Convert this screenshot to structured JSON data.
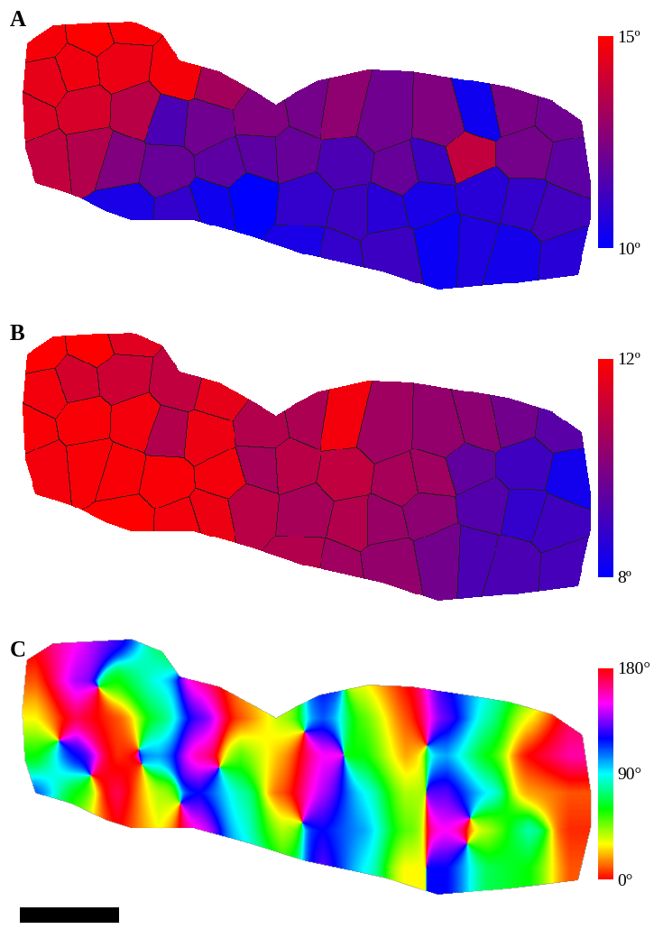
{
  "chart_data": [
    {
      "type": "heatmap",
      "title": "A",
      "tick_labels": false,
      "colors": [
        "#0000ff",
        "#ff0000"
      ],
      "colorbar_range": [
        10,
        15
      ],
      "colorbar_ticks": [
        {
          "value": 15,
          "label": "15º"
        },
        {
          "value": 10,
          "label": "10º"
        }
      ],
      "cells": [
        [
          14.8,
          15.0,
          14.9,
          null,
          null,
          null,
          null,
          null,
          null,
          null,
          null,
          null,
          null
        ],
        [
          14.5,
          14.7,
          14.6,
          14.8,
          13.2,
          null,
          null,
          null,
          null,
          null,
          null,
          null,
          null
        ],
        [
          14.3,
          14.2,
          13.6,
          11.5,
          12.2,
          12.5,
          12.3,
          12.8,
          12.2,
          12.5,
          10.3,
          12.4,
          12.2
        ],
        [
          13.8,
          13.5,
          12.5,
          12.0,
          11.8,
          11.8,
          12.0,
          11.5,
          12.0,
          11.2,
          13.8,
          12.3,
          11.8
        ],
        [
          null,
          null,
          10.5,
          11.0,
          10.3,
          10.0,
          11.0,
          11.2,
          10.8,
          10.5,
          10.8,
          11.0,
          11.3
        ],
        [
          null,
          null,
          null,
          null,
          null,
          null,
          10.5,
          11.0,
          11.2,
          10.2,
          10.6,
          10.4,
          10.8
        ]
      ]
    },
    {
      "type": "heatmap",
      "title": "B",
      "tick_labels": false,
      "colors": [
        "#0000ff",
        "#ff0000"
      ],
      "colorbar_range": [
        8,
        12
      ],
      "colorbar_ticks": [
        {
          "value": 12,
          "label": "12º"
        },
        {
          "value": 8,
          "label": "8º"
        }
      ],
      "cells": [
        [
          12,
          12,
          11.5,
          null,
          null,
          null,
          null,
          null,
          null,
          null,
          null,
          null,
          null
        ],
        [
          11.8,
          11.3,
          11.2,
          11.0,
          11.6,
          null,
          null,
          null,
          null,
          null,
          null,
          null,
          null
        ],
        [
          11.9,
          11.9,
          11.8,
          10.8,
          11.7,
          10.8,
          10.7,
          11.8,
          10.5,
          10.3,
          10.2,
          9.8,
          9.4
        ],
        [
          11.8,
          11.9,
          11.9,
          11.9,
          11.8,
          10.6,
          10.9,
          11.0,
          10.6,
          10.5,
          9.5,
          9.0,
          8.3
        ],
        [
          null,
          null,
          12,
          11.8,
          11.7,
          10.9,
          10.6,
          10.8,
          10.4,
          10.2,
          9.3,
          8.8,
          9.0
        ],
        [
          null,
          null,
          null,
          null,
          null,
          null,
          10.8,
          10.5,
          10.3,
          9.8,
          9.2,
          9.2,
          9.1
        ]
      ]
    },
    {
      "type": "orientation",
      "title": "C",
      "tick_labels": false,
      "colors": [
        "#ff0000",
        "#ffff00",
        "#00ff00",
        "#00ffff",
        "#0000ff",
        "#ff00ff",
        "#ff0000"
      ],
      "colorbar_range": [
        0,
        180
      ],
      "colorbar_ticks": [
        {
          "value": 180,
          "label": "180°"
        },
        {
          "value": 90,
          "label": "90°"
        },
        {
          "value": 0,
          "label": "0°"
        }
      ],
      "cells": [
        [
          175,
          150,
          125,
          70,
          40,
          20,
          10,
          60,
          100,
          150,
          170,
          120,
          80,
          40
        ],
        [
          10,
          140,
          60,
          90,
          160,
          20,
          40,
          120,
          30,
          0,
          120,
          90,
          60,
          20
        ],
        [
          30,
          170,
          10,
          70,
          130,
          10,
          40,
          110,
          50,
          10,
          130,
          80,
          30,
          170
        ],
        [
          60,
          120,
          5,
          100,
          160,
          50,
          20,
          150,
          60,
          20,
          100,
          60,
          0,
          160
        ],
        [
          110,
          60,
          170,
          40,
          120,
          80,
          10,
          140,
          90,
          40,
          130,
          90,
          20,
          10
        ],
        [
          80,
          40,
          0,
          30,
          150,
          90,
          40,
          120,
          100,
          50,
          150,
          40,
          80,
          5
        ],
        [
          60,
          30,
          10,
          50,
          140,
          100,
          60,
          130,
          90,
          30,
          120,
          70,
          60,
          10
        ]
      ]
    }
  ]
}
